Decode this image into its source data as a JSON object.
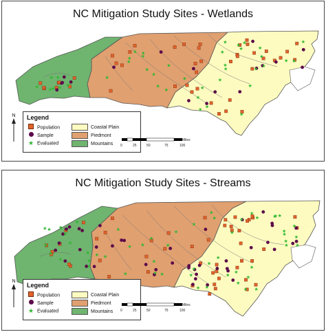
{
  "maps": [
    {
      "title": "NC Mitigation Study Sites - Wetlands",
      "legend": {
        "title": "Legend",
        "points": [
          "Population",
          "Sample",
          "Evaluated"
        ],
        "regions": [
          "Coastal Plain",
          "Piedmont",
          "Mountains"
        ]
      },
      "north": "N",
      "scale": {
        "ticks": [
          "0",
          "25",
          "50",
          "75",
          "100"
        ],
        "unit": "Miles"
      }
    },
    {
      "title": "NC Mitigation Study Sites - Streams",
      "legend": {
        "title": "Legend",
        "points": [
          "Population",
          "Sample",
          "Evaluated"
        ],
        "regions": [
          "Coastal Plain",
          "Piedmont",
          "Mountains"
        ]
      },
      "north": "N",
      "scale": {
        "ticks": [
          "0",
          "25",
          "50",
          "75",
          "100"
        ],
        "unit": "Miles"
      }
    }
  ],
  "colors": {
    "coastal_plain": "#fdfbc0",
    "piedmont": "#e0a070",
    "mountains": "#6fb46f",
    "population": "#e0632a",
    "sample": "#5c0a4a",
    "evaluated": "#2eb82e"
  },
  "icons": {
    "population": "square-icon",
    "sample": "circle-icon",
    "evaluated": "star-icon",
    "north": "north-arrow-icon"
  }
}
